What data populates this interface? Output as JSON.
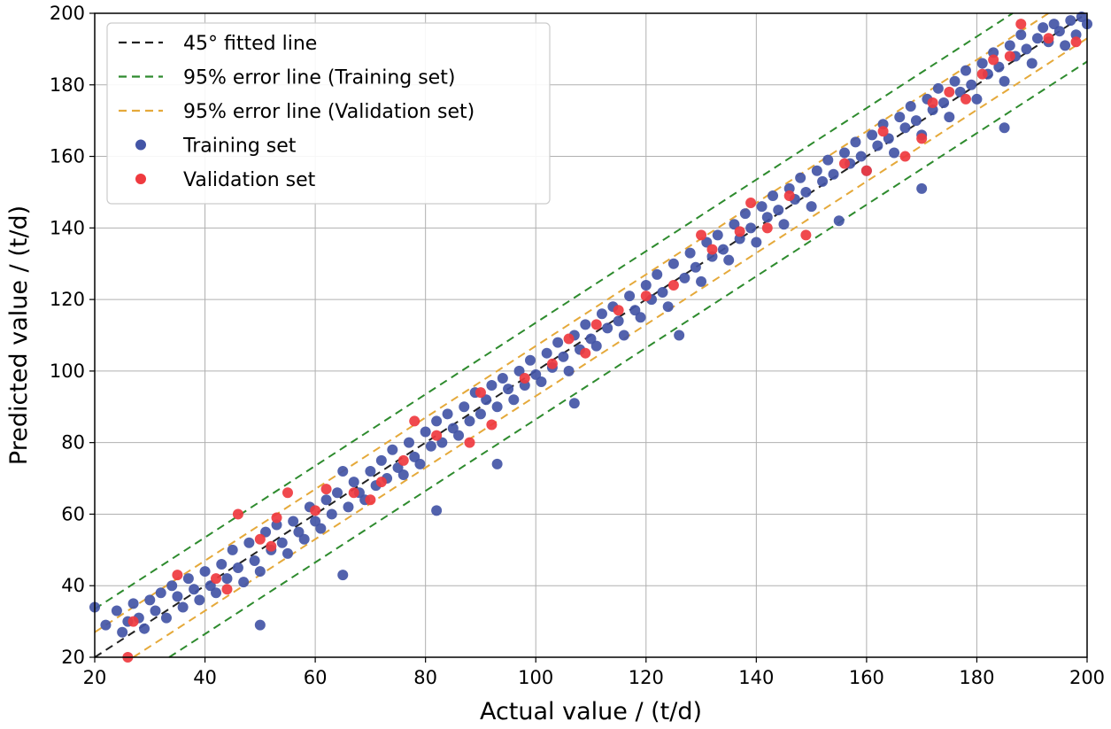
{
  "chart_data": {
    "type": "scatter",
    "xlabel": "Actual value / (t/d)",
    "ylabel": "Predicted value / (t/d)",
    "xlim": [
      20,
      200
    ],
    "ylim": [
      20,
      200
    ],
    "xticks": [
      "20",
      "40",
      "60",
      "80",
      "100",
      "120",
      "140",
      "160",
      "180",
      "200"
    ],
    "yticks": [
      "20",
      "40",
      "60",
      "80",
      "100",
      "120",
      "140",
      "160",
      "180",
      "200"
    ],
    "grid": true,
    "legend_position": "top-left",
    "colors": {
      "fitted_line": "#222222",
      "training_error_line": "#2e8b2e",
      "validation_error_line": "#e5a93a",
      "training_points": "#4355a6",
      "validation_points": "#ef3a3f",
      "grid": "#b0b0b0"
    },
    "lines": [
      {
        "name": "45° fitted line",
        "style": "dashed",
        "color": "#222222",
        "x": [
          20,
          200
        ],
        "y": [
          20,
          200
        ]
      },
      {
        "name": "95% error line (Training set)",
        "style": "dashed",
        "color": "#2e8b2e",
        "offsets": [
          13.5,
          -13.5
        ]
      },
      {
        "name": "95% error line (Validation set)",
        "style": "dashed",
        "color": "#e5a93a",
        "offsets": [
          7,
          -7
        ]
      }
    ],
    "series": [
      {
        "name": "Training set",
        "color": "#4355a6",
        "points": [
          [
            20,
            34
          ],
          [
            22,
            29
          ],
          [
            24,
            33
          ],
          [
            25,
            27
          ],
          [
            26,
            30
          ],
          [
            27,
            35
          ],
          [
            28,
            31
          ],
          [
            29,
            28
          ],
          [
            30,
            36
          ],
          [
            31,
            33
          ],
          [
            32,
            38
          ],
          [
            33,
            31
          ],
          [
            34,
            40
          ],
          [
            35,
            37
          ],
          [
            36,
            34
          ],
          [
            37,
            42
          ],
          [
            38,
            39
          ],
          [
            39,
            36
          ],
          [
            40,
            44
          ],
          [
            41,
            40
          ],
          [
            42,
            38
          ],
          [
            43,
            46
          ],
          [
            44,
            42
          ],
          [
            45,
            50
          ],
          [
            46,
            45
          ],
          [
            47,
            41
          ],
          [
            48,
            52
          ],
          [
            49,
            47
          ],
          [
            50,
            44
          ],
          [
            50,
            29
          ],
          [
            51,
            55
          ],
          [
            52,
            50
          ],
          [
            53,
            57
          ],
          [
            54,
            52
          ],
          [
            55,
            49
          ],
          [
            56,
            58
          ],
          [
            57,
            55
          ],
          [
            58,
            53
          ],
          [
            59,
            62
          ],
          [
            60,
            58
          ],
          [
            61,
            56
          ],
          [
            62,
            64
          ],
          [
            63,
            60
          ],
          [
            64,
            66
          ],
          [
            65,
            43
          ],
          [
            65,
            72
          ],
          [
            66,
            62
          ],
          [
            67,
            69
          ],
          [
            68,
            66
          ],
          [
            69,
            64
          ],
          [
            70,
            72
          ],
          [
            71,
            68
          ],
          [
            72,
            75
          ],
          [
            73,
            70
          ],
          [
            74,
            78
          ],
          [
            75,
            73
          ],
          [
            76,
            71
          ],
          [
            77,
            80
          ],
          [
            78,
            76
          ],
          [
            79,
            74
          ],
          [
            80,
            83
          ],
          [
            81,
            79
          ],
          [
            82,
            61
          ],
          [
            82,
            86
          ],
          [
            83,
            80
          ],
          [
            84,
            88
          ],
          [
            85,
            84
          ],
          [
            86,
            82
          ],
          [
            87,
            90
          ],
          [
            88,
            86
          ],
          [
            89,
            94
          ],
          [
            90,
            88
          ],
          [
            91,
            92
          ],
          [
            92,
            96
          ],
          [
            93,
            74
          ],
          [
            93,
            90
          ],
          [
            94,
            98
          ],
          [
            95,
            95
          ],
          [
            96,
            92
          ],
          [
            97,
            100
          ],
          [
            98,
            96
          ],
          [
            99,
            103
          ],
          [
            100,
            99
          ],
          [
            101,
            97
          ],
          [
            102,
            105
          ],
          [
            103,
            101
          ],
          [
            104,
            108
          ],
          [
            105,
            104
          ],
          [
            106,
            100
          ],
          [
            107,
            91
          ],
          [
            107,
            110
          ],
          [
            108,
            106
          ],
          [
            109,
            113
          ],
          [
            110,
            109
          ],
          [
            111,
            107
          ],
          [
            112,
            116
          ],
          [
            113,
            112
          ],
          [
            114,
            118
          ],
          [
            115,
            114
          ],
          [
            116,
            110
          ],
          [
            117,
            121
          ],
          [
            118,
            117
          ],
          [
            119,
            115
          ],
          [
            120,
            124
          ],
          [
            121,
            120
          ],
          [
            122,
            127
          ],
          [
            123,
            122
          ],
          [
            124,
            118
          ],
          [
            125,
            130
          ],
          [
            126,
            110
          ],
          [
            127,
            126
          ],
          [
            128,
            133
          ],
          [
            129,
            129
          ],
          [
            130,
            125
          ],
          [
            131,
            136
          ],
          [
            132,
            132
          ],
          [
            133,
            138
          ],
          [
            134,
            134
          ],
          [
            135,
            131
          ],
          [
            136,
            141
          ],
          [
            137,
            137
          ],
          [
            138,
            144
          ],
          [
            139,
            140
          ],
          [
            140,
            136
          ],
          [
            141,
            146
          ],
          [
            142,
            143
          ],
          [
            143,
            149
          ],
          [
            144,
            145
          ],
          [
            145,
            141
          ],
          [
            146,
            151
          ],
          [
            147,
            148
          ],
          [
            148,
            154
          ],
          [
            149,
            150
          ],
          [
            150,
            146
          ],
          [
            151,
            156
          ],
          [
            152,
            153
          ],
          [
            153,
            159
          ],
          [
            154,
            155
          ],
          [
            155,
            142
          ],
          [
            156,
            161
          ],
          [
            157,
            158
          ],
          [
            158,
            164
          ],
          [
            159,
            160
          ],
          [
            160,
            156
          ],
          [
            161,
            166
          ],
          [
            162,
            163
          ],
          [
            163,
            169
          ],
          [
            164,
            165
          ],
          [
            165,
            161
          ],
          [
            166,
            171
          ],
          [
            167,
            168
          ],
          [
            168,
            174
          ],
          [
            169,
            170
          ],
          [
            170,
            151
          ],
          [
            170,
            166
          ],
          [
            171,
            176
          ],
          [
            172,
            173
          ],
          [
            173,
            179
          ],
          [
            174,
            175
          ],
          [
            175,
            171
          ],
          [
            176,
            181
          ],
          [
            177,
            178
          ],
          [
            178,
            184
          ],
          [
            179,
            180
          ],
          [
            180,
            176
          ],
          [
            181,
            186
          ],
          [
            182,
            183
          ],
          [
            183,
            189
          ],
          [
            184,
            185
          ],
          [
            185,
            168
          ],
          [
            185,
            181
          ],
          [
            186,
            191
          ],
          [
            187,
            188
          ],
          [
            188,
            194
          ],
          [
            189,
            190
          ],
          [
            190,
            186
          ],
          [
            191,
            193
          ],
          [
            192,
            196
          ],
          [
            193,
            192
          ],
          [
            194,
            197
          ],
          [
            195,
            195
          ],
          [
            196,
            191
          ],
          [
            197,
            198
          ],
          [
            198,
            194
          ],
          [
            199,
            199
          ],
          [
            200,
            197
          ]
        ]
      },
      {
        "name": "Validation set",
        "color": "#ef3a3f",
        "points": [
          [
            26,
            20
          ],
          [
            27,
            30
          ],
          [
            35,
            43
          ],
          [
            42,
            42
          ],
          [
            44,
            39
          ],
          [
            46,
            60
          ],
          [
            50,
            53
          ],
          [
            52,
            51
          ],
          [
            53,
            59
          ],
          [
            55,
            66
          ],
          [
            60,
            61
          ],
          [
            62,
            67
          ],
          [
            67,
            66
          ],
          [
            70,
            64
          ],
          [
            72,
            69
          ],
          [
            76,
            75
          ],
          [
            78,
            86
          ],
          [
            82,
            82
          ],
          [
            88,
            80
          ],
          [
            90,
            94
          ],
          [
            92,
            85
          ],
          [
            98,
            98
          ],
          [
            103,
            102
          ],
          [
            106,
            109
          ],
          [
            109,
            105
          ],
          [
            111,
            113
          ],
          [
            115,
            117
          ],
          [
            120,
            121
          ],
          [
            125,
            124
          ],
          [
            130,
            138
          ],
          [
            132,
            134
          ],
          [
            137,
            139
          ],
          [
            139,
            147
          ],
          [
            142,
            140
          ],
          [
            146,
            149
          ],
          [
            149,
            138
          ],
          [
            156,
            158
          ],
          [
            160,
            156
          ],
          [
            163,
            167
          ],
          [
            167,
            160
          ],
          [
            170,
            165
          ],
          [
            172,
            175
          ],
          [
            175,
            178
          ],
          [
            178,
            176
          ],
          [
            181,
            183
          ],
          [
            183,
            187
          ],
          [
            186,
            188
          ],
          [
            188,
            197
          ],
          [
            193,
            193
          ],
          [
            198,
            192
          ]
        ]
      }
    ]
  }
}
